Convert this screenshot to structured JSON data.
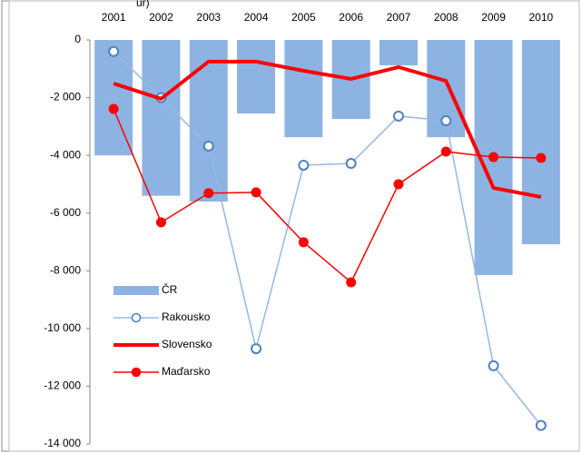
{
  "chart_data": {
    "type": "bar-line",
    "title": "ur)",
    "categories": [
      "2001",
      "2002",
      "2003",
      "2004",
      "2005",
      "2006",
      "2007",
      "2008",
      "2009",
      "2010"
    ],
    "series": [
      {
        "name": "ČR",
        "type": "bar",
        "color": "#8db3e2",
        "values": [
          -4000,
          -5400,
          -5600,
          -2550,
          -3370,
          -2740,
          -880,
          -3370,
          -8150,
          -7080
        ]
      },
      {
        "name": "Rakousko",
        "type": "line",
        "marker": "open-circle",
        "color": "#95b8e3",
        "values": [
          -400,
          -2000,
          -3680,
          -10700,
          -4340,
          -4280,
          -2640,
          -2800,
          -11290,
          -13360
        ]
      },
      {
        "name": "Slovensko",
        "type": "line",
        "marker": "none",
        "color": "#ff0000",
        "values": [
          -1510,
          -2040,
          -750,
          -750,
          -1070,
          -1350,
          -940,
          -1420,
          -5130,
          -5440
        ]
      },
      {
        "name": "Maďarsko",
        "type": "line",
        "marker": "filled-circle",
        "color": "#ff0000",
        "values": [
          -2390,
          -6320,
          -5310,
          -5280,
          -7010,
          -8400,
          -5000,
          -3870,
          -4060,
          -4090
        ]
      }
    ],
    "ylim": [
      -14000,
      0
    ],
    "yticks": [
      {
        "value": -14000,
        "label": "-14 000"
      },
      {
        "value": -12000,
        "label": "-12 000"
      },
      {
        "value": -10000,
        "label": "-10 000"
      },
      {
        "value": -8000,
        "label": "-8 000"
      },
      {
        "value": -6000,
        "label": "-6 000"
      },
      {
        "value": -4000,
        "label": "-4 000"
      },
      {
        "value": -2000,
        "label": "-2 000"
      },
      0
    ],
    "legend": "left"
  }
}
